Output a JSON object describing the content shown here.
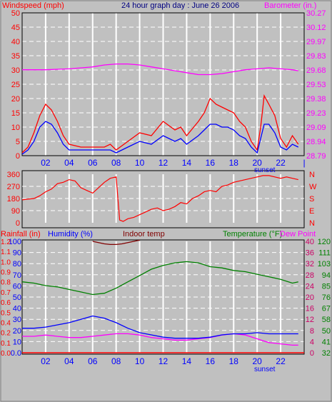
{
  "header": {
    "windspeed_label": "Windspeed (mph)",
    "title": "24 hour graph day : June 26 2006",
    "barometer_label": "Barometer (in.)"
  },
  "lower_header": {
    "rainfall_label": "Rainfall (in)",
    "humidity_label": "Humidity (%)",
    "indoor_label": "Indoor temp",
    "temperature_label": "Temperature (°F)",
    "dewpoint_label": "Dew Point"
  },
  "sunset_label": "sunset",
  "colors": {
    "background": "#c0c0c0",
    "grid": "#ffffff",
    "wind_gust": "#ff0000",
    "wind_avg": "#0000ff",
    "barometer": "#ff00ff",
    "direction": "#ff0000",
    "humidity": "#0000ff",
    "indoor": "#800000",
    "temperature": "#008000",
    "dewpoint": "#ff00ff",
    "rainfall": "#ff0000",
    "axis_red": "#ff0000",
    "axis_blue": "#0000ff",
    "axis_magenta": "#ff00ff",
    "axis_green": "#008000",
    "axis_purple": "#cc0066"
  },
  "chart_data": [
    {
      "type": "line",
      "name": "wind-barometer",
      "x_ticks": [
        "02",
        "04",
        "06",
        "08",
        "10",
        "12",
        "14",
        "16",
        "18",
        "20",
        "22"
      ],
      "x_last_tick": "|",
      "ylim_left": [
        0,
        50
      ],
      "y_ticks_left": [
        "0",
        "5",
        "10",
        "15",
        "20",
        "25",
        "30",
        "35",
        "40",
        "45",
        "50"
      ],
      "y_ticks_right": [
        "28.79",
        "28.94",
        "29.09",
        "29.23",
        "29.38",
        "29.53",
        "29.68",
        "29.83",
        "29.97",
        "30.12",
        "30.27"
      ],
      "ylim_right": [
        28.79,
        30.27
      ],
      "series": [
        {
          "key": "gust",
          "x": [
            0,
            0.5,
            1,
            1.5,
            2,
            2.5,
            3,
            3.5,
            4,
            5,
            6,
            7,
            7.5,
            8,
            9,
            10,
            11,
            12,
            13,
            13.5,
            14,
            15,
            15.5,
            16,
            16.5,
            17,
            17.5,
            18,
            18.5,
            19,
            19.5,
            20,
            20.3,
            20.6,
            21,
            21.5,
            22,
            22.5,
            23,
            23.5
          ],
          "y": [
            1,
            3,
            8,
            14,
            18,
            16,
            12,
            7,
            4,
            3,
            3,
            3,
            4,
            2,
            5,
            8,
            7,
            12,
            9,
            10,
            7,
            12,
            15,
            20,
            18,
            17,
            16,
            15,
            12,
            10,
            5,
            2,
            10,
            21,
            18,
            14,
            6,
            3,
            7,
            4
          ]
        },
        {
          "key": "avg",
          "x": [
            0,
            0.5,
            1,
            1.5,
            2,
            2.5,
            3,
            3.5,
            4,
            5,
            6,
            7,
            7.5,
            8,
            9,
            10,
            11,
            12,
            13,
            13.5,
            14,
            15,
            15.5,
            16,
            16.5,
            17,
            17.5,
            18,
            18.5,
            19,
            19.5,
            20,
            20.3,
            20.6,
            21,
            21.5,
            22,
            22.5,
            23,
            23.5
          ],
          "y": [
            0.5,
            2,
            5,
            10,
            12,
            11,
            8,
            4,
            2,
            2,
            2,
            2,
            2,
            1,
            3,
            5,
            4,
            7,
            5,
            6,
            4,
            7,
            9,
            11,
            11,
            10,
            10,
            9,
            7,
            6,
            3,
            1,
            6,
            11,
            11,
            8,
            3,
            2,
            4,
            3
          ]
        },
        {
          "key": "barometer",
          "x": [
            0,
            2,
            4,
            6,
            7,
            8,
            9,
            10,
            11,
            12,
            13,
            14,
            15,
            16,
            17,
            18,
            19,
            20,
            21,
            22,
            23,
            23.5
          ],
          "y": [
            29.68,
            29.68,
            29.69,
            29.71,
            29.73,
            29.74,
            29.74,
            29.73,
            29.71,
            29.69,
            29.67,
            29.65,
            29.63,
            29.63,
            29.64,
            29.66,
            29.68,
            29.69,
            29.7,
            29.69,
            29.68,
            29.67
          ]
        }
      ]
    },
    {
      "type": "line",
      "name": "wind-direction",
      "ylim": [
        0,
        360
      ],
      "y_ticks_left": [
        "0",
        "90",
        "180",
        "270",
        "360"
      ],
      "y_ticks_right": [
        "N",
        "E",
        "S",
        "W",
        "N"
      ],
      "series": [
        {
          "key": "direction",
          "x": [
            0,
            0.5,
            1,
            1.5,
            2,
            2.5,
            3,
            3.5,
            4,
            4.5,
            5,
            5.5,
            6,
            6.5,
            7,
            7.5,
            8,
            8.3,
            8.6,
            9,
            9.5,
            10,
            10.5,
            11,
            11.5,
            12,
            12.5,
            13,
            13.5,
            14,
            14.5,
            15,
            15.5,
            16,
            16.5,
            17,
            17.5,
            18,
            18.5,
            19,
            19.5,
            20,
            20.5,
            21,
            21.5,
            22,
            22.5,
            23,
            23.5
          ],
          "y": [
            170,
            175,
            180,
            200,
            230,
            250,
            290,
            300,
            320,
            310,
            260,
            240,
            220,
            260,
            300,
            330,
            340,
            20,
            10,
            30,
            40,
            60,
            80,
            100,
            110,
            90,
            100,
            120,
            150,
            140,
            180,
            200,
            230,
            240,
            230,
            270,
            280,
            300,
            310,
            320,
            330,
            340,
            350,
            350,
            340,
            330,
            340,
            330,
            320
          ]
        }
      ]
    },
    {
      "type": "line",
      "name": "temp-humidity",
      "x_ticks": [
        "02",
        "04",
        "06",
        "08",
        "10",
        "12",
        "14",
        "16",
        "18",
        "20",
        "22"
      ],
      "ylim_left": [
        0,
        100
      ],
      "y_ticks_left_humidity": [
        "0.0",
        "10",
        "20",
        "30",
        "40",
        "50",
        "60",
        "70",
        "80",
        "90",
        "100"
      ],
      "y_ticks_left_rain": [
        "0.0",
        "0.1",
        "0.2",
        "0.4",
        "0.5",
        "0.6",
        "0.7",
        "0.8",
        "0.9",
        "1.0",
        "1.1",
        "1.2"
      ],
      "y_ticks_right_c": [
        "0",
        "4",
        "8",
        "12",
        "16",
        "20",
        "24",
        "28",
        "32",
        "36",
        "40"
      ],
      "y_ticks_right_f": [
        "32",
        "41",
        "50",
        "58",
        "67",
        "76",
        "85",
        "94",
        "103",
        "111",
        "120"
      ],
      "ylim_right": [
        32,
        120
      ],
      "series": [
        {
          "key": "temperature",
          "x": [
            0,
            1,
            2,
            3,
            4,
            5,
            6,
            7,
            8,
            9,
            10,
            11,
            12,
            13,
            14,
            15,
            16,
            17,
            18,
            19,
            20,
            21,
            22,
            23,
            23.5
          ],
          "y": [
            88,
            87,
            85,
            84,
            82,
            80,
            78,
            79,
            83,
            88,
            93,
            98,
            101,
            103,
            104,
            103,
            100,
            99,
            97,
            96,
            94,
            92,
            90,
            87,
            88
          ]
        },
        {
          "key": "humidity",
          "x": [
            0,
            1,
            2,
            3,
            4,
            5,
            6,
            7,
            8,
            9,
            10,
            11,
            12,
            13,
            14,
            15,
            16,
            17,
            18,
            19,
            20,
            21,
            22,
            23,
            23.5
          ],
          "y": [
            22,
            22,
            23,
            25,
            27,
            30,
            33,
            31,
            27,
            22,
            18,
            16,
            14,
            13,
            13,
            13,
            14,
            16,
            17,
            17,
            18,
            17,
            17,
            17,
            17
          ]
        },
        {
          "key": "dewpoint",
          "x": [
            0,
            1,
            2,
            3,
            4,
            5,
            6,
            7,
            8,
            9,
            10,
            11,
            12,
            13,
            14,
            15,
            16,
            17,
            18,
            19,
            20,
            21,
            22,
            23,
            23.5
          ],
          "y": [
            45,
            45,
            46,
            45,
            44,
            44,
            45,
            46,
            47,
            47,
            46,
            44,
            43,
            42,
            42,
            43,
            44,
            46,
            47,
            46,
            43,
            40,
            39,
            38,
            38
          ]
        },
        {
          "key": "indoor",
          "x": [
            6,
            6.5,
            7,
            7.5,
            8,
            8.5,
            9,
            9.5,
            10
          ],
          "y": [
            120,
            119,
            118,
            117.5,
            117.5,
            118,
            119,
            120,
            121
          ]
        }
      ]
    }
  ]
}
